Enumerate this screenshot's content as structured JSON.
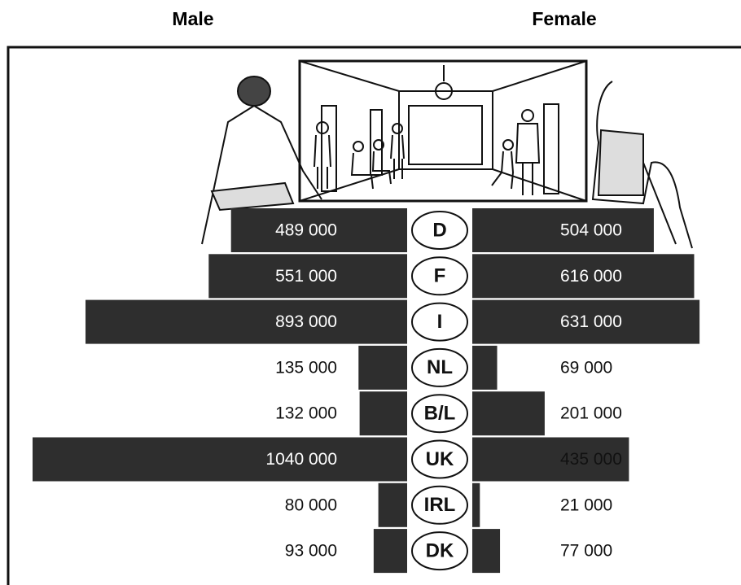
{
  "chart_data": {
    "type": "butterfly",
    "categories": [
      "D",
      "F",
      "I",
      "NL",
      "B/L",
      "UK",
      "IRL",
      "DK"
    ],
    "series": [
      {
        "name": "Male",
        "color": "#2e2e2e",
        "values": [
          489000,
          551000,
          893000,
          135000,
          132000,
          1040000,
          80000,
          93000
        ],
        "value_labels": [
          "489 000",
          "551 000",
          "893 000",
          "135 000",
          "132 000",
          "1040 000",
          "80 000",
          "93 000"
        ]
      },
      {
        "name": "Female",
        "color": "#2e2e2e",
        "values": [
          504000,
          616000,
          631000,
          69000,
          201000,
          435000,
          21000,
          77000
        ],
        "value_labels": [
          "504 000",
          "616 000",
          "631 000",
          "69 000",
          "201 000",
          "435 000",
          "21 000",
          "77 000"
        ]
      }
    ]
  }
}
